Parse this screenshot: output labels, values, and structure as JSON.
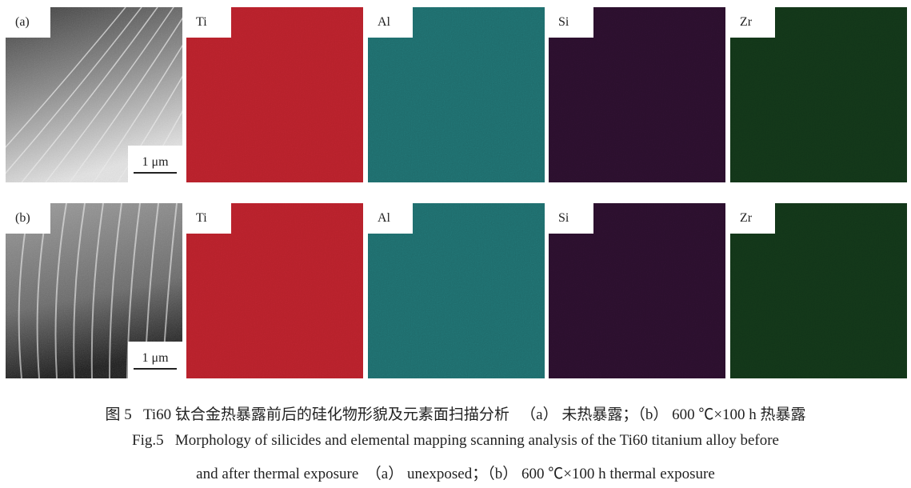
{
  "figure": {
    "rows": [
      {
        "label": "(a)",
        "scale_bar": "1 μm",
        "maps": [
          "Ti",
          "Al",
          "Si",
          "Zr"
        ]
      },
      {
        "label": "(b)",
        "scale_bar": "1 μm",
        "maps": [
          "Ti",
          "Al",
          "Si",
          "Zr"
        ]
      }
    ],
    "map_colors": {
      "Ti": "#b5202a",
      "Al": "#1e6a6a",
      "Si": "#2a0f2c",
      "Zr": "#123418"
    },
    "caption_cn": "图 5   Ti60 钛合金热暴露前后的硅化物形貌及元素面扫描分析   （a） 未热暴露；（b） 600 ℃×100 h 热暴露",
    "caption_en_1": "Fig.5   Morphology of silicides and elemental mapping scanning analysis of the Ti60 titanium alloy before",
    "caption_en_2": "and after thermal exposure  （a） unexposed；（b） 600 ℃×100 h thermal exposure"
  }
}
